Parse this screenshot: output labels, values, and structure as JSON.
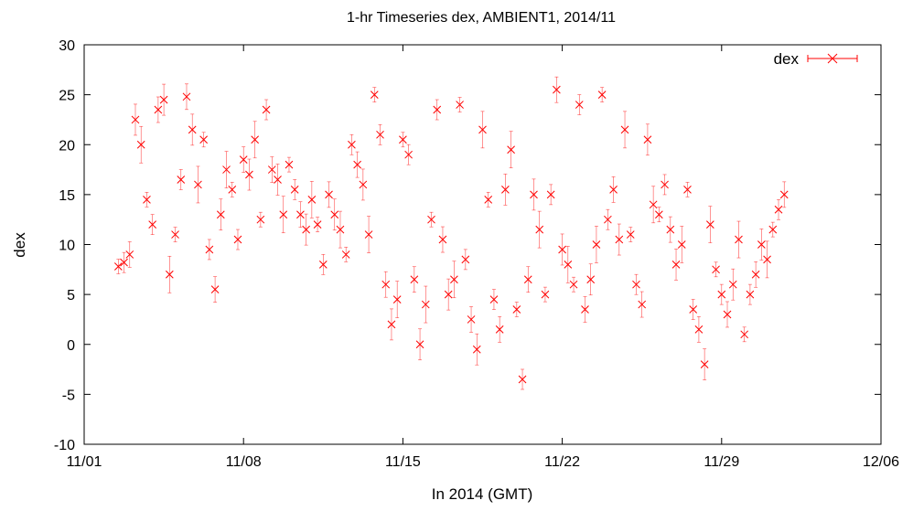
{
  "chart_data": {
    "type": "scatter",
    "title": "1-hr Timeseries dex, AMBIENT1, 2014/11",
    "xlabel": "In 2014 (GMT)",
    "ylabel": "dex",
    "xlim": [
      "2014-11-01",
      "2014-12-06"
    ],
    "ylim": [
      -10,
      30
    ],
    "x_ticks": [
      "11/01",
      "11/08",
      "11/15",
      "11/22",
      "11/29",
      "12/06"
    ],
    "y_ticks": [
      -10,
      -5,
      0,
      5,
      10,
      15,
      20,
      25,
      30
    ],
    "legend": {
      "position": "top-right",
      "entries": [
        "dex"
      ]
    },
    "grid": false,
    "marker": "x",
    "error_bars": true,
    "series": [
      {
        "name": "dex",
        "color": "#ff0000",
        "points": [
          [
            "2014-11-02 12:00",
            7.8
          ],
          [
            "2014-11-02 18:00",
            8.2
          ],
          [
            "2014-11-03 00:00",
            9.0
          ],
          [
            "2014-11-03 06:00",
            22.5
          ],
          [
            "2014-11-03 12:00",
            20.0
          ],
          [
            "2014-11-03 18:00",
            14.5
          ],
          [
            "2014-11-04 00:00",
            12.0
          ],
          [
            "2014-11-04 06:00",
            23.5
          ],
          [
            "2014-11-04 12:00",
            24.5
          ],
          [
            "2014-11-04 18:00",
            7.0
          ],
          [
            "2014-11-05 00:00",
            11.0
          ],
          [
            "2014-11-05 06:00",
            16.5
          ],
          [
            "2014-11-05 12:00",
            24.8
          ],
          [
            "2014-11-05 18:00",
            21.5
          ],
          [
            "2014-11-06 00:00",
            16.0
          ],
          [
            "2014-11-06 06:00",
            20.5
          ],
          [
            "2014-11-06 12:00",
            9.5
          ],
          [
            "2014-11-06 18:00",
            5.5
          ],
          [
            "2014-11-07 00:00",
            13.0
          ],
          [
            "2014-11-07 06:00",
            17.5
          ],
          [
            "2014-11-07 12:00",
            15.5
          ],
          [
            "2014-11-07 18:00",
            10.5
          ],
          [
            "2014-11-08 00:00",
            18.5
          ],
          [
            "2014-11-08 06:00",
            17.0
          ],
          [
            "2014-11-08 12:00",
            20.5
          ],
          [
            "2014-11-08 18:00",
            12.5
          ],
          [
            "2014-11-09 00:00",
            23.5
          ],
          [
            "2014-11-09 06:00",
            17.5
          ],
          [
            "2014-11-09 12:00",
            16.5
          ],
          [
            "2014-11-09 18:00",
            13.0
          ],
          [
            "2014-11-10 00:00",
            18.0
          ],
          [
            "2014-11-10 06:00",
            15.5
          ],
          [
            "2014-11-10 12:00",
            13.0
          ],
          [
            "2014-11-10 18:00",
            11.5
          ],
          [
            "2014-11-11 00:00",
            14.5
          ],
          [
            "2014-11-11 06:00",
            12.0
          ],
          [
            "2014-11-11 12:00",
            8.0
          ],
          [
            "2014-11-11 18:00",
            15.0
          ],
          [
            "2014-11-12 00:00",
            13.0
          ],
          [
            "2014-11-12 06:00",
            11.5
          ],
          [
            "2014-11-12 12:00",
            9.0
          ],
          [
            "2014-11-12 18:00",
            20.0
          ],
          [
            "2014-11-13 00:00",
            18.0
          ],
          [
            "2014-11-13 06:00",
            16.0
          ],
          [
            "2014-11-13 12:00",
            11.0
          ],
          [
            "2014-11-13 18:00",
            25.0
          ],
          [
            "2014-11-14 00:00",
            21.0
          ],
          [
            "2014-11-14 06:00",
            6.0
          ],
          [
            "2014-11-14 12:00",
            2.0
          ],
          [
            "2014-11-14 18:00",
            4.5
          ],
          [
            "2014-11-15 00:00",
            20.5
          ],
          [
            "2014-11-15 06:00",
            19.0
          ],
          [
            "2014-11-15 12:00",
            6.5
          ],
          [
            "2014-11-15 18:00",
            0.0
          ],
          [
            "2014-11-16 00:00",
            4.0
          ],
          [
            "2014-11-16 06:00",
            12.5
          ],
          [
            "2014-11-16 12:00",
            23.5
          ],
          [
            "2014-11-16 18:00",
            10.5
          ],
          [
            "2014-11-17 00:00",
            5.0
          ],
          [
            "2014-11-17 06:00",
            6.5
          ],
          [
            "2014-11-17 12:00",
            24.0
          ],
          [
            "2014-11-17 18:00",
            8.5
          ],
          [
            "2014-11-18 00:00",
            2.5
          ],
          [
            "2014-11-18 06:00",
            -0.5
          ],
          [
            "2014-11-18 12:00",
            21.5
          ],
          [
            "2014-11-18 18:00",
            14.5
          ],
          [
            "2014-11-19 00:00",
            4.5
          ],
          [
            "2014-11-19 06:00",
            1.5
          ],
          [
            "2014-11-19 12:00",
            15.5
          ],
          [
            "2014-11-19 18:00",
            19.5
          ],
          [
            "2014-11-20 00:00",
            3.5
          ],
          [
            "2014-11-20 06:00",
            -3.5
          ],
          [
            "2014-11-20 12:00",
            6.5
          ],
          [
            "2014-11-20 18:00",
            15.0
          ],
          [
            "2014-11-21 00:00",
            11.5
          ],
          [
            "2014-11-21 06:00",
            5.0
          ],
          [
            "2014-11-21 12:00",
            15.0
          ],
          [
            "2014-11-21 18:00",
            25.5
          ],
          [
            "2014-11-22 00:00",
            9.5
          ],
          [
            "2014-11-22 06:00",
            8.0
          ],
          [
            "2014-11-22 12:00",
            6.0
          ],
          [
            "2014-11-22 18:00",
            24.0
          ],
          [
            "2014-11-23 00:00",
            3.5
          ],
          [
            "2014-11-23 06:00",
            6.5
          ],
          [
            "2014-11-23 12:00",
            10.0
          ],
          [
            "2014-11-23 18:00",
            25.0
          ],
          [
            "2014-11-24 00:00",
            12.5
          ],
          [
            "2014-11-24 06:00",
            15.5
          ],
          [
            "2014-11-24 12:00",
            10.5
          ],
          [
            "2014-11-24 18:00",
            21.5
          ],
          [
            "2014-11-25 00:00",
            11.0
          ],
          [
            "2014-11-25 06:00",
            6.0
          ],
          [
            "2014-11-25 12:00",
            4.0
          ],
          [
            "2014-11-25 18:00",
            20.5
          ],
          [
            "2014-11-26 00:00",
            14.0
          ],
          [
            "2014-11-26 06:00",
            13.0
          ],
          [
            "2014-11-26 12:00",
            16.0
          ],
          [
            "2014-11-26 18:00",
            11.5
          ],
          [
            "2014-11-27 00:00",
            8.0
          ],
          [
            "2014-11-27 06:00",
            10.0
          ],
          [
            "2014-11-27 12:00",
            15.5
          ],
          [
            "2014-11-27 18:00",
            3.5
          ],
          [
            "2014-11-28 00:00",
            1.5
          ],
          [
            "2014-11-28 06:00",
            -2.0
          ],
          [
            "2014-11-28 12:00",
            12.0
          ],
          [
            "2014-11-28 18:00",
            7.5
          ],
          [
            "2014-11-29 00:00",
            5.0
          ],
          [
            "2014-11-29 06:00",
            3.0
          ],
          [
            "2014-11-29 12:00",
            6.0
          ],
          [
            "2014-11-29 18:00",
            10.5
          ],
          [
            "2014-11-30 00:00",
            1.0
          ],
          [
            "2014-11-30 06:00",
            5.0
          ],
          [
            "2014-11-30 12:00",
            7.0
          ],
          [
            "2014-11-30 18:00",
            10.0
          ],
          [
            "2014-12-01 00:00",
            8.5
          ],
          [
            "2014-12-01 06:00",
            11.5
          ],
          [
            "2014-12-01 12:00",
            13.5
          ],
          [
            "2014-12-01 18:00",
            15.0
          ]
        ]
      }
    ]
  }
}
